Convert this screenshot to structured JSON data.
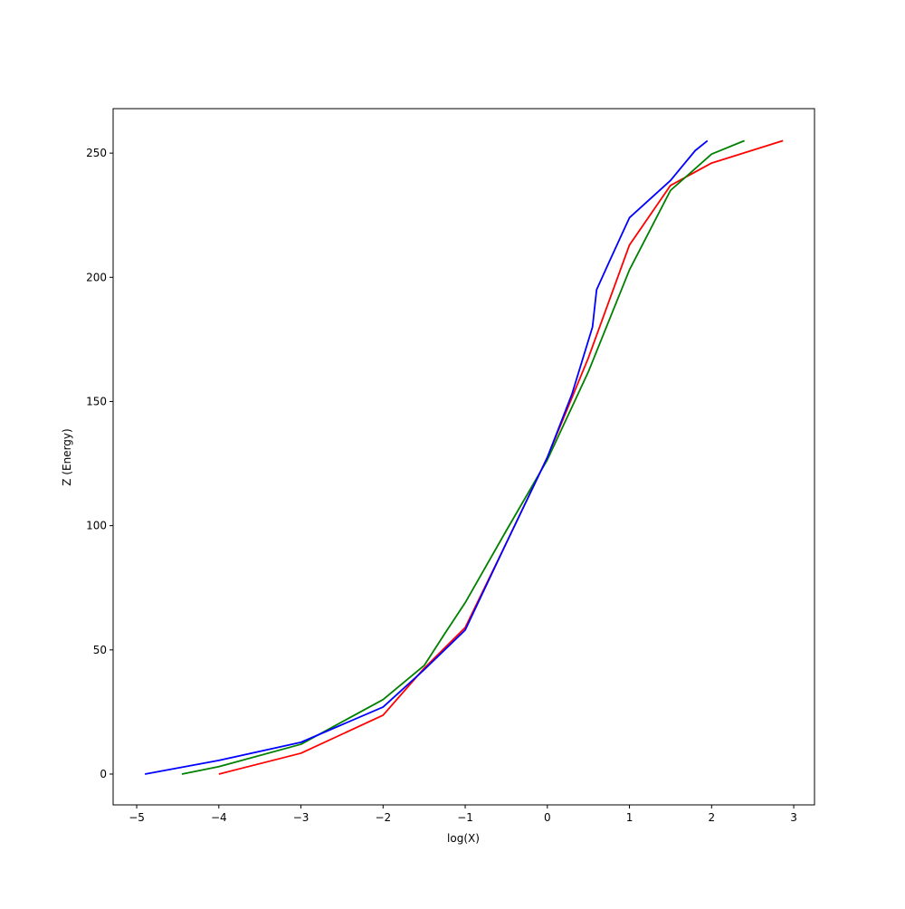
{
  "chart_data": {
    "type": "line",
    "xlabel": "log(X)",
    "ylabel": "Z (Energy)",
    "xlim": [
      -5.287,
      3.253
    ],
    "ylim": [
      -12.4,
      267.9
    ],
    "xticks": [
      {
        "value": -5,
        "label": "−5"
      },
      {
        "value": -4,
        "label": "−4"
      },
      {
        "value": -3,
        "label": "−3"
      },
      {
        "value": -2,
        "label": "−2"
      },
      {
        "value": -1,
        "label": "−1"
      },
      0,
      1,
      2,
      3
    ],
    "yticks": [
      0,
      50,
      100,
      150,
      200,
      250
    ],
    "series": [
      {
        "color": "red",
        "x": [
          -4,
          -3,
          -2,
          -1.5,
          -1,
          -0.5,
          0,
          0.5,
          1,
          1.5,
          2,
          2.87
        ],
        "values": [
          0,
          8.4,
          23.7,
          42.6,
          59,
          93,
          127.5,
          167.6,
          213,
          237,
          246,
          255
        ]
      },
      {
        "color": "green",
        "x": [
          -4.45,
          -4,
          -3,
          -2,
          -1.5,
          -1.25,
          -1,
          -0.5,
          0,
          0.5,
          1,
          1.5,
          2,
          2.4
        ],
        "values": [
          0,
          3,
          12,
          30,
          43.7,
          56.5,
          69,
          98,
          126.5,
          162,
          203,
          235,
          249.6,
          255
        ]
      },
      {
        "color": "blue",
        "x": [
          -4.9,
          -4,
          -3,
          -2,
          -1.5,
          -1,
          -0.5,
          0,
          0.3,
          0.55,
          0.6,
          0.75,
          1,
          1.5,
          1.8,
          1.95
        ],
        "values": [
          0,
          5.5,
          12.8,
          27,
          42,
          58,
          93,
          127.5,
          153,
          180,
          195,
          206,
          224,
          239,
          251,
          255
        ]
      }
    ]
  }
}
